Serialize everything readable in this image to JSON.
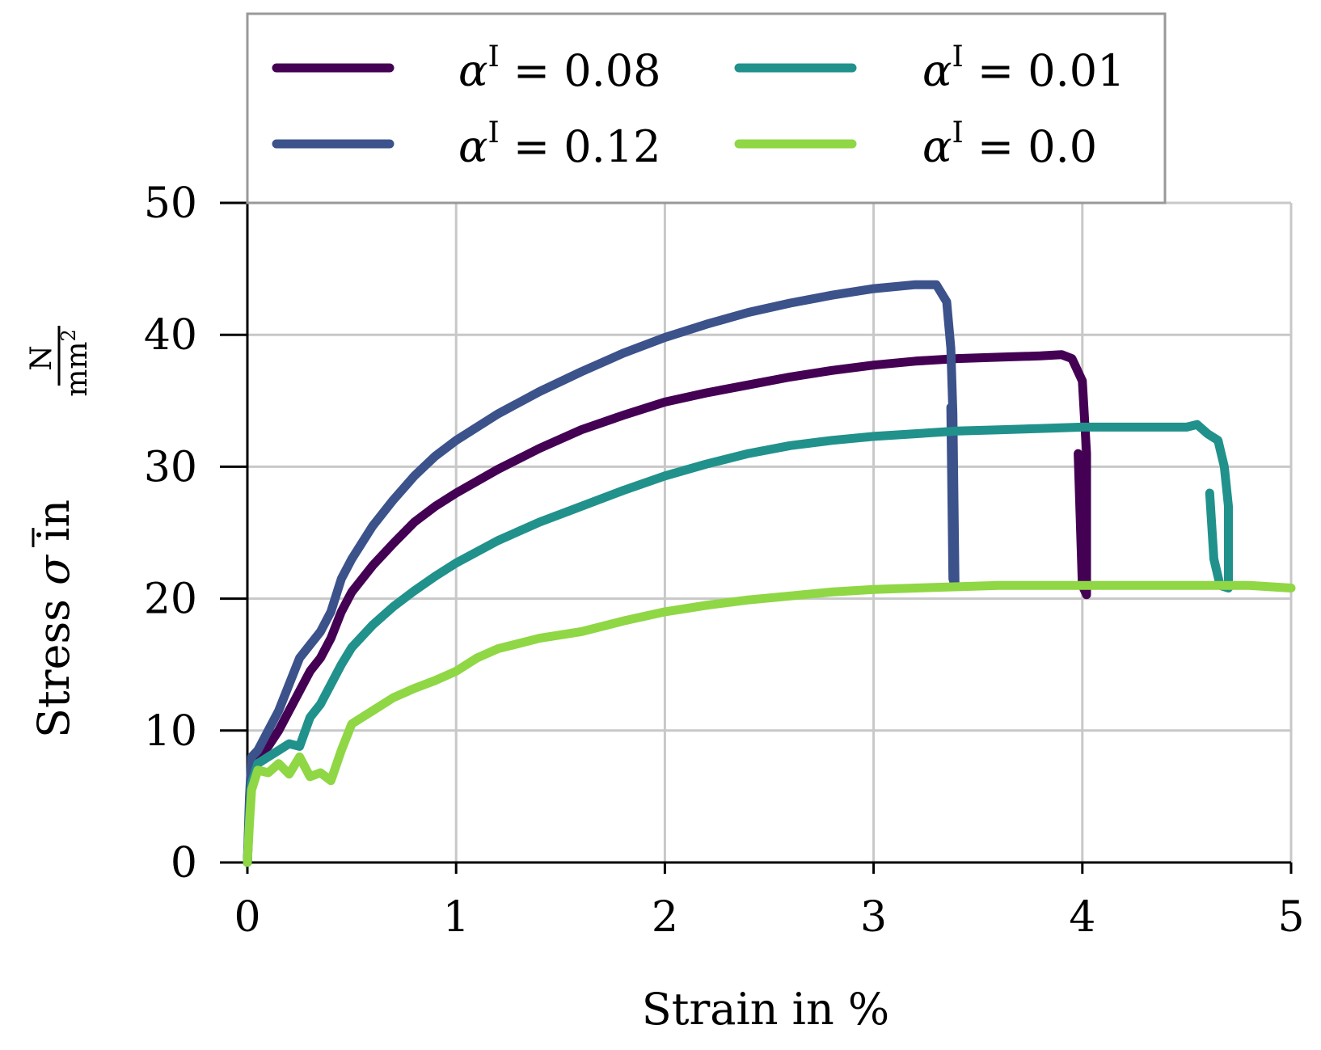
{
  "chart_data": {
    "type": "line",
    "xlabel": "Strain in %",
    "ylabel": {
      "prefix": "Stress ",
      "symbol": "σ",
      "middle": " in ",
      "unit_numerator": "N",
      "unit_denominator": "mm",
      "unit_exponent": "2"
    },
    "xlim": [
      0,
      5
    ],
    "ylim": [
      0,
      50
    ],
    "xticks": [
      "0",
      "1",
      "2",
      "3",
      "4",
      "5"
    ],
    "yticks": [
      "0",
      "10",
      "20",
      "30",
      "40",
      "50"
    ],
    "grid": true,
    "legend_position": "top",
    "legend_columns": 2,
    "series": [
      {
        "name": "0.08",
        "legend_symbol": "α",
        "legend_sup": "I",
        "color": "#440154",
        "points": [
          [
            0,
            0
          ],
          [
            0.01,
            4
          ],
          [
            0.02,
            7
          ],
          [
            0.05,
            8
          ],
          [
            0.1,
            8.8
          ],
          [
            0.15,
            10
          ],
          [
            0.2,
            11.5
          ],
          [
            0.25,
            13
          ],
          [
            0.3,
            14.5
          ],
          [
            0.35,
            15.5
          ],
          [
            0.4,
            17
          ],
          [
            0.45,
            19
          ],
          [
            0.5,
            20.5
          ],
          [
            0.6,
            22.5
          ],
          [
            0.7,
            24.2
          ],
          [
            0.8,
            25.8
          ],
          [
            0.9,
            27
          ],
          [
            1.0,
            28
          ],
          [
            1.2,
            29.8
          ],
          [
            1.4,
            31.4
          ],
          [
            1.6,
            32.8
          ],
          [
            1.8,
            33.9
          ],
          [
            2.0,
            34.9
          ],
          [
            2.2,
            35.6
          ],
          [
            2.4,
            36.2
          ],
          [
            2.6,
            36.8
          ],
          [
            2.8,
            37.3
          ],
          [
            3.0,
            37.7
          ],
          [
            3.2,
            38
          ],
          [
            3.4,
            38.2
          ],
          [
            3.6,
            38.3
          ],
          [
            3.8,
            38.4
          ],
          [
            3.9,
            38.5
          ],
          [
            3.95,
            38.2
          ],
          [
            4.0,
            36.5
          ],
          [
            4.02,
            31
          ],
          [
            4.02,
            20.3
          ],
          [
            4.0,
            21
          ],
          [
            3.99,
            26
          ],
          [
            3.98,
            31
          ]
        ]
      },
      {
        "name": "0.12",
        "legend_symbol": "α",
        "legend_sup": "I",
        "color": "#3b528b",
        "points": [
          [
            0,
            0
          ],
          [
            0.01,
            5
          ],
          [
            0.02,
            8
          ],
          [
            0.05,
            8.5
          ],
          [
            0.1,
            10
          ],
          [
            0.15,
            11.5
          ],
          [
            0.2,
            13.5
          ],
          [
            0.25,
            15.5
          ],
          [
            0.3,
            16.5
          ],
          [
            0.35,
            17.5
          ],
          [
            0.4,
            19
          ],
          [
            0.45,
            21.5
          ],
          [
            0.5,
            23
          ],
          [
            0.6,
            25.5
          ],
          [
            0.7,
            27.5
          ],
          [
            0.8,
            29.3
          ],
          [
            0.9,
            30.8
          ],
          [
            1.0,
            32
          ],
          [
            1.2,
            34
          ],
          [
            1.4,
            35.7
          ],
          [
            1.6,
            37.2
          ],
          [
            1.8,
            38.6
          ],
          [
            2.0,
            39.8
          ],
          [
            2.2,
            40.8
          ],
          [
            2.4,
            41.7
          ],
          [
            2.6,
            42.4
          ],
          [
            2.8,
            43
          ],
          [
            3.0,
            43.5
          ],
          [
            3.2,
            43.8
          ],
          [
            3.3,
            43.8
          ],
          [
            3.35,
            42.5
          ],
          [
            3.37,
            39
          ],
          [
            3.38,
            34
          ],
          [
            3.39,
            21
          ],
          [
            3.38,
            21.5
          ],
          [
            3.37,
            34.5
          ]
        ]
      },
      {
        "name": "0.01",
        "legend_symbol": "α",
        "legend_sup": "I",
        "color": "#21918c",
        "points": [
          [
            0,
            0
          ],
          [
            0.01,
            3.5
          ],
          [
            0.02,
            6
          ],
          [
            0.05,
            7.5
          ],
          [
            0.1,
            8
          ],
          [
            0.15,
            8.5
          ],
          [
            0.2,
            9
          ],
          [
            0.25,
            8.8
          ],
          [
            0.3,
            11
          ],
          [
            0.35,
            12
          ],
          [
            0.4,
            13.5
          ],
          [
            0.45,
            15
          ],
          [
            0.5,
            16.3
          ],
          [
            0.6,
            18
          ],
          [
            0.7,
            19.4
          ],
          [
            0.8,
            20.6
          ],
          [
            0.9,
            21.7
          ],
          [
            1.0,
            22.7
          ],
          [
            1.2,
            24.4
          ],
          [
            1.4,
            25.8
          ],
          [
            1.6,
            27
          ],
          [
            1.8,
            28.2
          ],
          [
            2.0,
            29.3
          ],
          [
            2.2,
            30.2
          ],
          [
            2.4,
            31
          ],
          [
            2.6,
            31.6
          ],
          [
            2.8,
            32
          ],
          [
            3.0,
            32.3
          ],
          [
            3.2,
            32.5
          ],
          [
            3.4,
            32.7
          ],
          [
            3.6,
            32.8
          ],
          [
            3.8,
            32.9
          ],
          [
            4.0,
            33
          ],
          [
            4.2,
            33
          ],
          [
            4.4,
            33
          ],
          [
            4.5,
            33
          ],
          [
            4.55,
            33.2
          ],
          [
            4.6,
            32.5
          ],
          [
            4.65,
            32
          ],
          [
            4.68,
            30
          ],
          [
            4.7,
            27
          ],
          [
            4.7,
            20.8
          ],
          [
            4.66,
            21
          ],
          [
            4.63,
            23
          ],
          [
            4.61,
            28
          ]
        ]
      },
      {
        "name": "0.0",
        "legend_symbol": "α",
        "legend_sup": "I",
        "color": "#8fd744",
        "points": [
          [
            0,
            0
          ],
          [
            0.01,
            3
          ],
          [
            0.02,
            5.5
          ],
          [
            0.05,
            7
          ],
          [
            0.1,
            6.8
          ],
          [
            0.15,
            7.5
          ],
          [
            0.2,
            6.7
          ],
          [
            0.25,
            8
          ],
          [
            0.3,
            6.5
          ],
          [
            0.35,
            6.8
          ],
          [
            0.4,
            6.2
          ],
          [
            0.45,
            8.5
          ],
          [
            0.5,
            10.5
          ],
          [
            0.6,
            11.5
          ],
          [
            0.7,
            12.5
          ],
          [
            0.8,
            13.2
          ],
          [
            0.9,
            13.8
          ],
          [
            1.0,
            14.5
          ],
          [
            1.1,
            15.5
          ],
          [
            1.2,
            16.2
          ],
          [
            1.4,
            17
          ],
          [
            1.6,
            17.5
          ],
          [
            1.8,
            18.3
          ],
          [
            2.0,
            19
          ],
          [
            2.2,
            19.5
          ],
          [
            2.4,
            19.9
          ],
          [
            2.6,
            20.2
          ],
          [
            2.8,
            20.5
          ],
          [
            3.0,
            20.7
          ],
          [
            3.2,
            20.8
          ],
          [
            3.4,
            20.9
          ],
          [
            3.6,
            21
          ],
          [
            3.8,
            21
          ],
          [
            4.0,
            21
          ],
          [
            4.2,
            21
          ],
          [
            4.4,
            21
          ],
          [
            4.6,
            21
          ],
          [
            4.8,
            21
          ],
          [
            5.0,
            20.8
          ]
        ]
      }
    ]
  }
}
